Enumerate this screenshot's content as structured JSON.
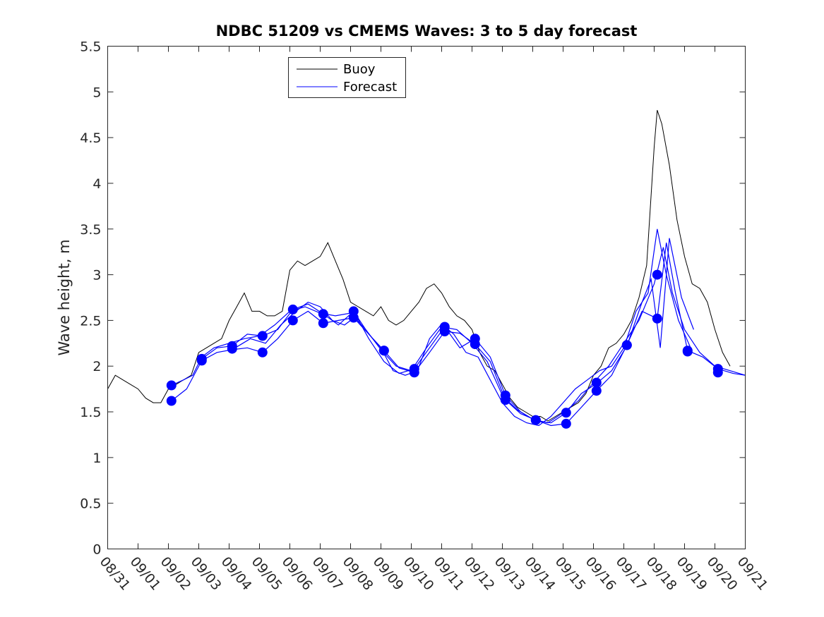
{
  "chart_data": {
    "type": "line",
    "title": "NDBC 51209 vs CMEMS Waves: 3 to 5 day forecast",
    "xlabel": "",
    "ylabel": "Wave height, m",
    "xlim": [
      0,
      21
    ],
    "ylim": [
      0,
      5.5
    ],
    "x_unit": "days since 08/31",
    "xtick_labels": [
      "08/31",
      "09/01",
      "09/02",
      "09/03",
      "09/04",
      "09/05",
      "09/06",
      "09/07",
      "09/08",
      "09/09",
      "09/10",
      "09/11",
      "09/12",
      "09/13",
      "09/14",
      "09/15",
      "09/16",
      "09/17",
      "09/18",
      "09/19",
      "09/20",
      "09/21"
    ],
    "ytick_labels": [
      "0",
      "0.5",
      "1",
      "1.5",
      "2",
      "2.5",
      "3",
      "3.5",
      "4",
      "4.5",
      "5",
      "5.5"
    ],
    "ytick_values": [
      0,
      0.5,
      1,
      1.5,
      2,
      2.5,
      3,
      3.5,
      4,
      4.5,
      5,
      5.5
    ],
    "legend": {
      "position": "top-left",
      "entries": [
        "Buoy",
        "Forecast"
      ]
    },
    "colors": {
      "buoy": "#000000",
      "forecast": "#0000ff"
    },
    "series": [
      {
        "name": "Buoy",
        "color": "#000000",
        "x": [
          0,
          0.25,
          0.5,
          0.75,
          1,
          1.25,
          1.5,
          1.75,
          2,
          2.25,
          2.5,
          2.75,
          3,
          3.25,
          3.5,
          3.75,
          4,
          4.25,
          4.5,
          4.75,
          5,
          5.25,
          5.5,
          5.75,
          6,
          6.25,
          6.5,
          6.75,
          7,
          7.25,
          7.5,
          7.75,
          8,
          8.25,
          8.5,
          8.75,
          9,
          9.25,
          9.5,
          9.75,
          10,
          10.25,
          10.5,
          10.75,
          11,
          11.25,
          11.5,
          11.75,
          12,
          12.25,
          12.5,
          12.75,
          13,
          13.25,
          13.5,
          13.75,
          14,
          14.25,
          14.5,
          14.75,
          15,
          15.25,
          15.5,
          15.75,
          16,
          16.25,
          16.5,
          16.75,
          17,
          17.25,
          17.5,
          17.75,
          18,
          18.1,
          18.25,
          18.5,
          18.75,
          19,
          19.25,
          19.5,
          19.75,
          20,
          20.25,
          20.5
        ],
        "values": [
          1.75,
          1.9,
          1.85,
          1.8,
          1.75,
          1.65,
          1.6,
          1.6,
          1.75,
          1.8,
          1.85,
          1.9,
          2.15,
          2.2,
          2.25,
          2.3,
          2.5,
          2.65,
          2.8,
          2.6,
          2.6,
          2.55,
          2.55,
          2.6,
          3.05,
          3.15,
          3.1,
          3.15,
          3.2,
          3.35,
          3.15,
          2.95,
          2.7,
          2.65,
          2.6,
          2.55,
          2.65,
          2.5,
          2.45,
          2.5,
          2.6,
          2.7,
          2.85,
          2.9,
          2.8,
          2.65,
          2.55,
          2.5,
          2.4,
          2.15,
          2.0,
          1.95,
          1.8,
          1.65,
          1.55,
          1.5,
          1.45,
          1.45,
          1.4,
          1.45,
          1.5,
          1.55,
          1.6,
          1.7,
          1.9,
          2.0,
          2.2,
          2.25,
          2.35,
          2.5,
          2.75,
          3.1,
          4.4,
          4.8,
          4.65,
          4.2,
          3.6,
          3.2,
          2.9,
          2.85,
          2.7,
          2.4,
          2.15,
          2.0
        ]
      },
      {
        "name": "Forecast",
        "color": "#0000ff",
        "segments": [
          {
            "x": [
              2.1,
              2.5,
              2.8,
              3.1,
              3.5,
              4.0,
              4.5,
              5.0,
              5.5,
              6.0,
              6.5,
              7.0,
              7.5,
              8.0,
              8.5,
              9.0,
              9.5,
              10.0,
              10.5,
              11.0,
              11.5,
              12.0,
              12.5,
              13.0,
              13.5,
              14.0,
              14.5,
              15.0,
              15.5,
              16.0,
              16.5,
              17.0,
              17.5,
              18.0,
              18.3,
              18.6,
              19.0,
              19.5,
              20.0,
              20.5,
              21.0
            ],
            "y": [
              1.79,
              1.85,
              1.9,
              2.1,
              2.2,
              2.25,
              2.3,
              2.33,
              2.45,
              2.6,
              2.65,
              2.58,
              2.55,
              2.58,
              2.4,
              2.18,
              2.0,
              1.95,
              2.2,
              2.43,
              2.4,
              2.25,
              2.05,
              1.68,
              1.52,
              1.42,
              1.38,
              1.49,
              1.62,
              1.82,
              2.0,
              2.25,
              2.5,
              2.9,
              3.3,
              2.8,
              2.4,
              2.15,
              2.0,
              1.95,
              1.9
            ]
          },
          {
            "x": [
              2.1,
              2.6,
              3.1,
              3.6,
              4.1,
              4.6,
              5.1,
              5.6,
              6.1,
              6.6,
              7.1,
              7.6,
              8.1,
              8.6,
              9.1,
              9.6,
              10.1,
              10.6,
              11.1,
              11.6,
              12.1,
              12.6,
              13.1,
              13.6,
              14.1,
              14.6,
              15.1,
              15.6,
              16.1,
              16.6,
              17.1,
              17.6,
              18.1,
              18.4,
              18.7,
              19.1,
              19.6,
              20.1,
              20.6,
              21.0
            ],
            "y": [
              1.62,
              1.75,
              2.06,
              2.15,
              2.18,
              2.2,
              2.15,
              2.3,
              2.5,
              2.6,
              2.47,
              2.5,
              2.53,
              2.35,
              2.17,
              1.98,
              1.93,
              2.15,
              2.38,
              2.36,
              2.24,
              2.05,
              1.63,
              1.48,
              1.41,
              1.35,
              1.37,
              1.55,
              1.73,
              1.9,
              2.23,
              2.6,
              2.52,
              3.35,
              2.8,
              2.17,
              2.1,
              1.97,
              1.92,
              1.9
            ]
          },
          {
            "x": [
              3.1,
              3.6,
              4.1,
              4.6,
              5.1,
              5.6,
              6.1,
              6.6,
              7.1,
              7.6,
              8.1,
              8.6,
              9.1,
              9.6,
              10.1,
              10.6,
              11.1,
              11.6,
              12.1,
              12.6,
              13.1,
              13.6,
              14.1,
              14.6,
              15.1,
              15.6,
              16.1,
              16.6,
              17.1,
              17.6,
              17.9,
              18.2,
              18.5,
              18.9,
              19.3
            ],
            "y": [
              2.08,
              2.2,
              2.22,
              2.35,
              2.33,
              2.4,
              2.62,
              2.68,
              2.57,
              2.45,
              2.6,
              2.3,
              2.05,
              1.92,
              1.97,
              2.2,
              2.43,
              2.2,
              2.3,
              2.1,
              1.68,
              1.5,
              1.4,
              1.38,
              1.49,
              1.7,
              1.81,
              1.95,
              2.22,
              2.7,
              2.95,
              2.2,
              3.4,
              2.75,
              2.4
            ]
          },
          {
            "x": [
              4.2,
              4.7,
              5.2,
              5.7,
              6.2,
              6.6,
              7.0,
              7.4,
              7.8,
              8.2,
              8.6,
              9.0,
              9.4,
              9.8,
              10.2,
              10.6,
              11.0,
              11.4,
              11.8,
              12.2,
              12.6,
              13.0,
              13.4,
              13.8,
              14.2,
              14.6,
              15.0,
              15.4,
              15.8,
              16.2,
              16.6,
              17.0,
              17.4,
              17.8,
              18.1,
              18.4,
              18.8,
              19.2
            ],
            "y": [
              2.2,
              2.3,
              2.25,
              2.45,
              2.6,
              2.7,
              2.65,
              2.5,
              2.45,
              2.55,
              2.35,
              2.2,
              1.95,
              1.9,
              1.95,
              2.3,
              2.46,
              2.35,
              2.15,
              2.1,
              1.85,
              1.6,
              1.45,
              1.38,
              1.35,
              1.45,
              1.6,
              1.75,
              1.85,
              1.95,
              2.0,
              2.2,
              2.6,
              2.8,
              3.5,
              3.0,
              2.5,
              2.2
            ]
          }
        ],
        "marker_points": [
          [
            2.1,
            1.79
          ],
          [
            2.1,
            1.62
          ],
          [
            3.1,
            2.08
          ],
          [
            3.1,
            2.06
          ],
          [
            4.1,
            2.22
          ],
          [
            4.1,
            2.19
          ],
          [
            5.1,
            2.33
          ],
          [
            5.1,
            2.15
          ],
          [
            6.1,
            2.62
          ],
          [
            6.1,
            2.5
          ],
          [
            7.1,
            2.57
          ],
          [
            7.1,
            2.47
          ],
          [
            8.1,
            2.6
          ],
          [
            8.1,
            2.53
          ],
          [
            9.1,
            2.17
          ],
          [
            9.1,
            2.17
          ],
          [
            10.1,
            1.97
          ],
          [
            10.1,
            1.93
          ],
          [
            11.1,
            2.43
          ],
          [
            11.1,
            2.38
          ],
          [
            12.1,
            2.3
          ],
          [
            12.1,
            2.24
          ],
          [
            13.1,
            1.68
          ],
          [
            13.1,
            1.63
          ],
          [
            14.1,
            1.41
          ],
          [
            14.1,
            1.41
          ],
          [
            15.1,
            1.49
          ],
          [
            15.1,
            1.37
          ],
          [
            16.1,
            1.82
          ],
          [
            16.1,
            1.73
          ],
          [
            17.1,
            2.23
          ],
          [
            17.1,
            2.23
          ],
          [
            18.1,
            3.0
          ],
          [
            18.1,
            2.52
          ],
          [
            19.1,
            2.17
          ],
          [
            19.1,
            2.16
          ],
          [
            20.1,
            1.97
          ],
          [
            20.1,
            1.93
          ]
        ]
      }
    ]
  }
}
